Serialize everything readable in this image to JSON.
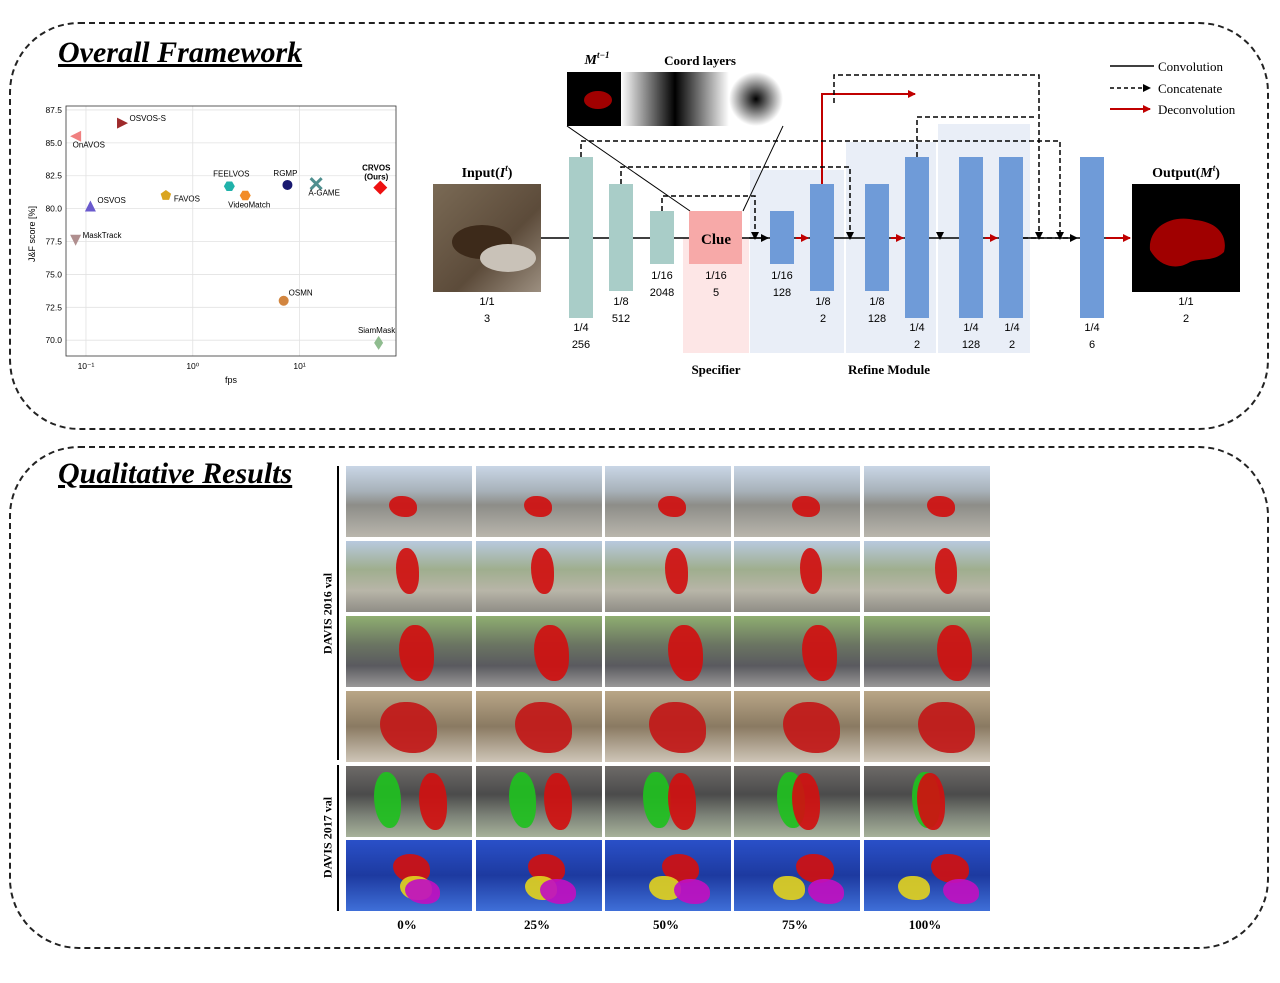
{
  "sections": {
    "framework_title": "Overall Framework",
    "qualitative_title": "Qualitative Results"
  },
  "colors": {
    "encoder": "#a9cdc8",
    "decoder": "#6f9bd8",
    "clue": "#f7a9a8",
    "specifier_bg": "#fde6e6",
    "refine_bg": "#e9eef7",
    "deconv_arrow": "#c00000"
  },
  "chart_data": {
    "type": "scatter",
    "xlabel": "fps",
    "ylabel": "J&F score [%]",
    "xscale": "log",
    "xlim": [
      0.065,
      80
    ],
    "ylim": [
      68.8,
      87.8
    ],
    "xticks": [
      "10⁻¹",
      "10⁰",
      "10¹"
    ],
    "yticks": [
      "87.5",
      "85.0",
      "82.5",
      "80.0",
      "77.5",
      "75.0",
      "72.5",
      "70.0"
    ],
    "grid": true,
    "points": [
      {
        "label": "OSVOS-S",
        "x": 0.22,
        "y": 86.5,
        "color": "#9e2a2b",
        "marker": "tri-right"
      },
      {
        "label": "OnAVOS",
        "x": 0.08,
        "y": 85.5,
        "color": "#f08080",
        "marker": "tri-left"
      },
      {
        "label": "OSVOS",
        "x": 0.11,
        "y": 80.2,
        "color": "#6a5acd",
        "marker": "tri-up"
      },
      {
        "label": "MaskTrack",
        "x": 0.08,
        "y": 77.6,
        "color": "#b08f8f",
        "marker": "tri-down"
      },
      {
        "label": "FAVOS",
        "x": 0.56,
        "y": 81.0,
        "color": "#daa520",
        "marker": "pentagon"
      },
      {
        "label": "FEELVOS",
        "x": 2.2,
        "y": 81.7,
        "color": "#20b2aa",
        "marker": "hexagon"
      },
      {
        "label": "VideoMatch",
        "x": 3.1,
        "y": 81.0,
        "color": "#f28c28",
        "marker": "hexagon"
      },
      {
        "label": "RGMP",
        "x": 7.7,
        "y": 81.8,
        "color": "#191970",
        "marker": "circle"
      },
      {
        "label": "A-GAME",
        "x": 14.3,
        "y": 81.9,
        "color": "#4f8f8f",
        "marker": "x"
      },
      {
        "label": "CRVOS\n(Ours)",
        "x": 57,
        "y": 81.6,
        "color": "#ee1111",
        "marker": "diamond"
      },
      {
        "label": "OSMN",
        "x": 7.1,
        "y": 73.0,
        "color": "#d2853f",
        "marker": "circle"
      },
      {
        "label": "SiamMask",
        "x": 55,
        "y": 69.8,
        "color": "#8fbc8f",
        "marker": "thin-diamond"
      }
    ]
  },
  "architecture": {
    "input_label": "Input(",
    "input_sym": "I",
    "input_sup": "t",
    "output_label": "Output(",
    "output_sym": "M",
    "output_sup": "t",
    "prev_mask_sym": "M",
    "prev_mask_sup": "t−1",
    "coord_layers": "Coord layers",
    "clue": "Clue",
    "specifier": "Specifier",
    "refine_module": "Refine Module",
    "blocks": [
      {
        "scale": "1/1",
        "ch": "3"
      },
      {
        "scale": "1/4",
        "ch": "256"
      },
      {
        "scale": "1/8",
        "ch": "512"
      },
      {
        "scale": "1/16",
        "ch": "2048"
      },
      {
        "scale": "1/16",
        "ch": "5"
      },
      {
        "scale": "1/16",
        "ch": "128"
      },
      {
        "scale": "1/8",
        "ch": "2"
      },
      {
        "scale": "1/8",
        "ch": "128"
      },
      {
        "scale": "1/4",
        "ch": "2"
      },
      {
        "scale": "1/4",
        "ch": "128"
      },
      {
        "scale": "1/4",
        "ch": "2"
      },
      {
        "scale": "1/4",
        "ch": "6"
      },
      {
        "scale": "1/1",
        "ch": "2"
      }
    ],
    "legend": [
      "Convolution",
      "Concatenate",
      "Deconvolution"
    ]
  },
  "qualitative": {
    "row_groups": [
      "DAVIS 2016 val",
      "DAVIS 2017 val"
    ],
    "columns": [
      "0%",
      "25%",
      "50%",
      "75%",
      "100%"
    ]
  }
}
